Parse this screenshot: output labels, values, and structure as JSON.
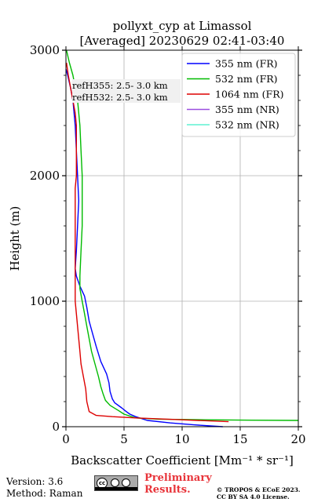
{
  "title": "pollyxt_cyp at Limassol",
  "subtitle": "[Averaged] 20230629 02:41-03:40",
  "footer": {
    "version": "Version: 3.6",
    "method": "Method: Raman",
    "preliminary_line1": "Preliminary",
    "preliminary_line2": "Results.",
    "copyright_line1": "© TROPOS & ECoE 2023.",
    "copyright_line2": "CC BY SA 4.0 License.",
    "license_badge": "cc-by-sa-icon"
  },
  "colors": {
    "355_FR": "#0000ff",
    "532_FR": "#00bb00",
    "1064_FR": "#dd0000",
    "355_NR": "#9a4fe0",
    "532_NR": "#5ef2d2",
    "grid": "#b0b0b0",
    "annotation_bg": "#f0f0f0"
  },
  "chart_data": {
    "type": "line",
    "xlabel": "Backscatter Coefficient [Mm⁻¹ * sr⁻¹]",
    "ylabel": "Height (m)",
    "xlim": [
      0,
      20
    ],
    "ylim": [
      0,
      3000
    ],
    "xticks": [
      0,
      5,
      10,
      15,
      20
    ],
    "yticks": [
      0,
      1000,
      2000,
      3000
    ],
    "grid": true,
    "legend_position": "top-right",
    "annotations": [
      "refH355:  2.5- 3.0 km",
      "refH532:  2.5- 3.0 km"
    ],
    "series": [
      {
        "name": "355 nm (FR)",
        "color_key": "355_FR",
        "points": [
          [
            13.5,
            0
          ],
          [
            11,
            15
          ],
          [
            9,
            30
          ],
          [
            7,
            50
          ],
          [
            6,
            80
          ],
          [
            5.5,
            100
          ],
          [
            5.2,
            120
          ],
          [
            4.8,
            150
          ],
          [
            4.2,
            190
          ],
          [
            4.0,
            220
          ],
          [
            3.8,
            280
          ],
          [
            3.7,
            350
          ],
          [
            3.5,
            420
          ],
          [
            3.0,
            520
          ],
          [
            2.6,
            640
          ],
          [
            2.3,
            740
          ],
          [
            2.0,
            840
          ],
          [
            1.8,
            950
          ],
          [
            1.6,
            1040
          ],
          [
            1.2,
            1120
          ],
          [
            0.9,
            1200
          ],
          [
            0.8,
            1260
          ],
          [
            0.9,
            1400
          ],
          [
            1.0,
            1600
          ],
          [
            1.1,
            1800
          ],
          [
            1.0,
            2000
          ],
          [
            0.9,
            2200
          ],
          [
            0.8,
            2400
          ],
          [
            0.6,
            2600
          ],
          [
            0.4,
            2700
          ],
          [
            0.15,
            2800
          ],
          [
            0,
            2850
          ]
        ]
      },
      {
        "name": "532 nm (FR)",
        "color_key": "532_FR",
        "points": [
          [
            20,
            50
          ],
          [
            16,
            52
          ],
          [
            12,
            55
          ],
          [
            8,
            60
          ],
          [
            6,
            70
          ],
          [
            5,
            100
          ],
          [
            4.5,
            130
          ],
          [
            3.8,
            170
          ],
          [
            3.4,
            210
          ],
          [
            3.2,
            260
          ],
          [
            3.0,
            320
          ],
          [
            2.8,
            400
          ],
          [
            2.5,
            500
          ],
          [
            2.2,
            600
          ],
          [
            2.0,
            700
          ],
          [
            1.8,
            800
          ],
          [
            1.6,
            900
          ],
          [
            1.4,
            1000
          ],
          [
            1.2,
            1100
          ],
          [
            1.2,
            1200
          ],
          [
            1.3,
            1400
          ],
          [
            1.4,
            1600
          ],
          [
            1.4,
            1800
          ],
          [
            1.4,
            2000
          ],
          [
            1.3,
            2200
          ],
          [
            1.2,
            2400
          ],
          [
            1.0,
            2600
          ],
          [
            0.6,
            2800
          ],
          [
            0.3,
            2900
          ],
          [
            0.05,
            3000
          ]
        ]
      },
      {
        "name": "1064 nm (FR)",
        "color_key": "1064_FR",
        "points": [
          [
            14,
            40
          ],
          [
            10,
            55
          ],
          [
            6,
            70
          ],
          [
            4,
            80
          ],
          [
            2.6,
            90
          ],
          [
            2.0,
            120
          ],
          [
            1.8,
            200
          ],
          [
            1.7,
            300
          ],
          [
            1.5,
            400
          ],
          [
            1.3,
            500
          ],
          [
            1.2,
            600
          ],
          [
            1.1,
            700
          ],
          [
            1.0,
            800
          ],
          [
            0.9,
            900
          ],
          [
            0.8,
            1000
          ],
          [
            0.8,
            1100
          ],
          [
            0.8,
            1200
          ],
          [
            0.8,
            1300
          ],
          [
            0.8,
            1400
          ],
          [
            0.8,
            1500
          ],
          [
            0.8,
            1600
          ],
          [
            0.8,
            1700
          ],
          [
            0.8,
            1800
          ],
          [
            0.8,
            1900
          ],
          [
            0.9,
            2000
          ],
          [
            0.9,
            2200
          ],
          [
            0.9,
            2400
          ],
          [
            0.8,
            2500
          ],
          [
            0.6,
            2600
          ],
          [
            0.4,
            2700
          ],
          [
            0.2,
            2800
          ],
          [
            0.05,
            2900
          ]
        ]
      },
      {
        "name": "355 nm (NR)",
        "color_key": "355_NR",
        "points": []
      },
      {
        "name": "532 nm (NR)",
        "color_key": "532_NR",
        "points": []
      }
    ]
  }
}
